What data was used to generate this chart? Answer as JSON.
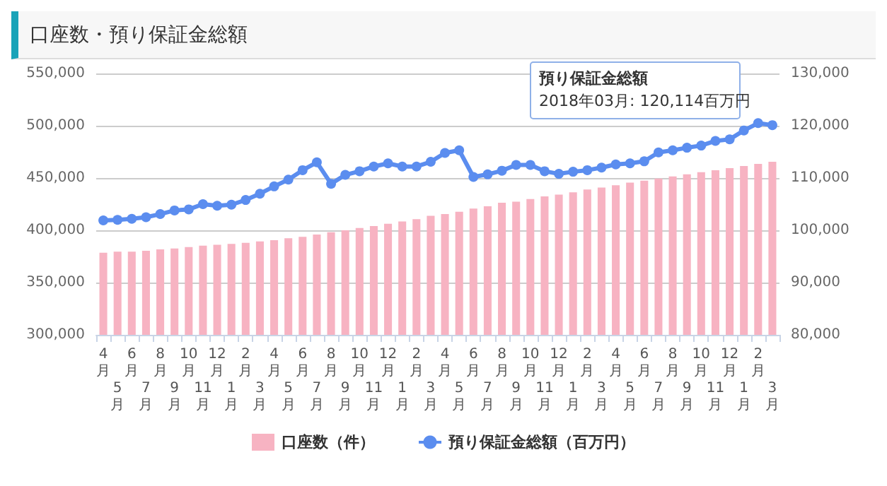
{
  "chart_data": {
    "type": "bar",
    "title": "口座数・預り保証金総額",
    "categories": [
      "4月",
      "5月",
      "6月",
      "7月",
      "8月",
      "9月",
      "10月",
      "11月",
      "12月",
      "1月",
      "2月",
      "3月",
      "4月",
      "5月",
      "6月",
      "7月",
      "8月",
      "9月",
      "10月",
      "11月",
      "12月",
      "1月",
      "2月",
      "3月",
      "4月",
      "5月",
      "6月",
      "7月",
      "8月",
      "9月",
      "10月",
      "11月",
      "12月",
      "1月",
      "2月",
      "3月",
      "4月",
      "5月",
      "6月",
      "7月",
      "8月",
      "9月",
      "10月",
      "11月",
      "12月",
      "1月",
      "2月",
      "3月"
    ],
    "series": [
      {
        "name": "口座数（件）",
        "color": "#f7b3c2",
        "values": [
          378600,
          379500,
          379500,
          380400,
          381700,
          382600,
          383900,
          385300,
          386200,
          387000,
          388000,
          389300,
          390600,
          392400,
          393800,
          396000,
          398200,
          400000,
          402200,
          404000,
          406200,
          408500,
          410700,
          413800,
          415600,
          417700,
          420800,
          423000,
          426400,
          427300,
          429900,
          432500,
          434200,
          436400,
          439000,
          440800,
          443000,
          445600,
          447500,
          449500,
          451500,
          453500,
          455500,
          457500,
          459500,
          461500,
          463500,
          465500
        ]
      },
      {
        "name": "預り保証金総額（百万円）",
        "type": "line",
        "axis": "y2",
        "color": "#5b8def",
        "values": [
          101900,
          102000,
          102200,
          102500,
          103100,
          103800,
          104000,
          105000,
          104700,
          104900,
          105800,
          107000,
          108400,
          109700,
          111500,
          113000,
          108900,
          110600,
          111300,
          112200,
          112800,
          112200,
          112200,
          113100,
          114800,
          115300,
          110200,
          110700,
          111400,
          112500,
          112500,
          111300,
          110800,
          111200,
          111500,
          112000,
          112600,
          112800,
          113200,
          114900,
          115300,
          115800,
          116200,
          117100,
          117400,
          119100,
          120500,
          120114
        ]
      }
    ],
    "ylim": [
      300000,
      550000
    ],
    "yticks": [
      {
        "value": 300000,
        "label": "300,000"
      },
      {
        "value": 350000,
        "label": "350,000"
      },
      {
        "value": 400000,
        "label": "400,000"
      },
      {
        "value": 450000,
        "label": "450,000"
      },
      {
        "value": 500000,
        "label": "500,000"
      },
      {
        "value": 550000,
        "label": "550,000"
      }
    ],
    "y2lim": [
      80000,
      130000
    ],
    "y2ticks": [
      {
        "value": 80000,
        "label": "80,000"
      },
      {
        "value": 90000,
        "label": "90,000"
      },
      {
        "value": 100000,
        "label": "100,000"
      },
      {
        "value": 110000,
        "label": "110,000"
      },
      {
        "value": 120000,
        "label": "120,000"
      },
      {
        "value": 130000,
        "label": "130,000"
      }
    ],
    "annotations": [
      "預り保証金総額",
      "2018年03月: 120,114百万円"
    ],
    "grid": "y",
    "legend": "bottom",
    "marker": "circle",
    "line_style": "solid"
  }
}
